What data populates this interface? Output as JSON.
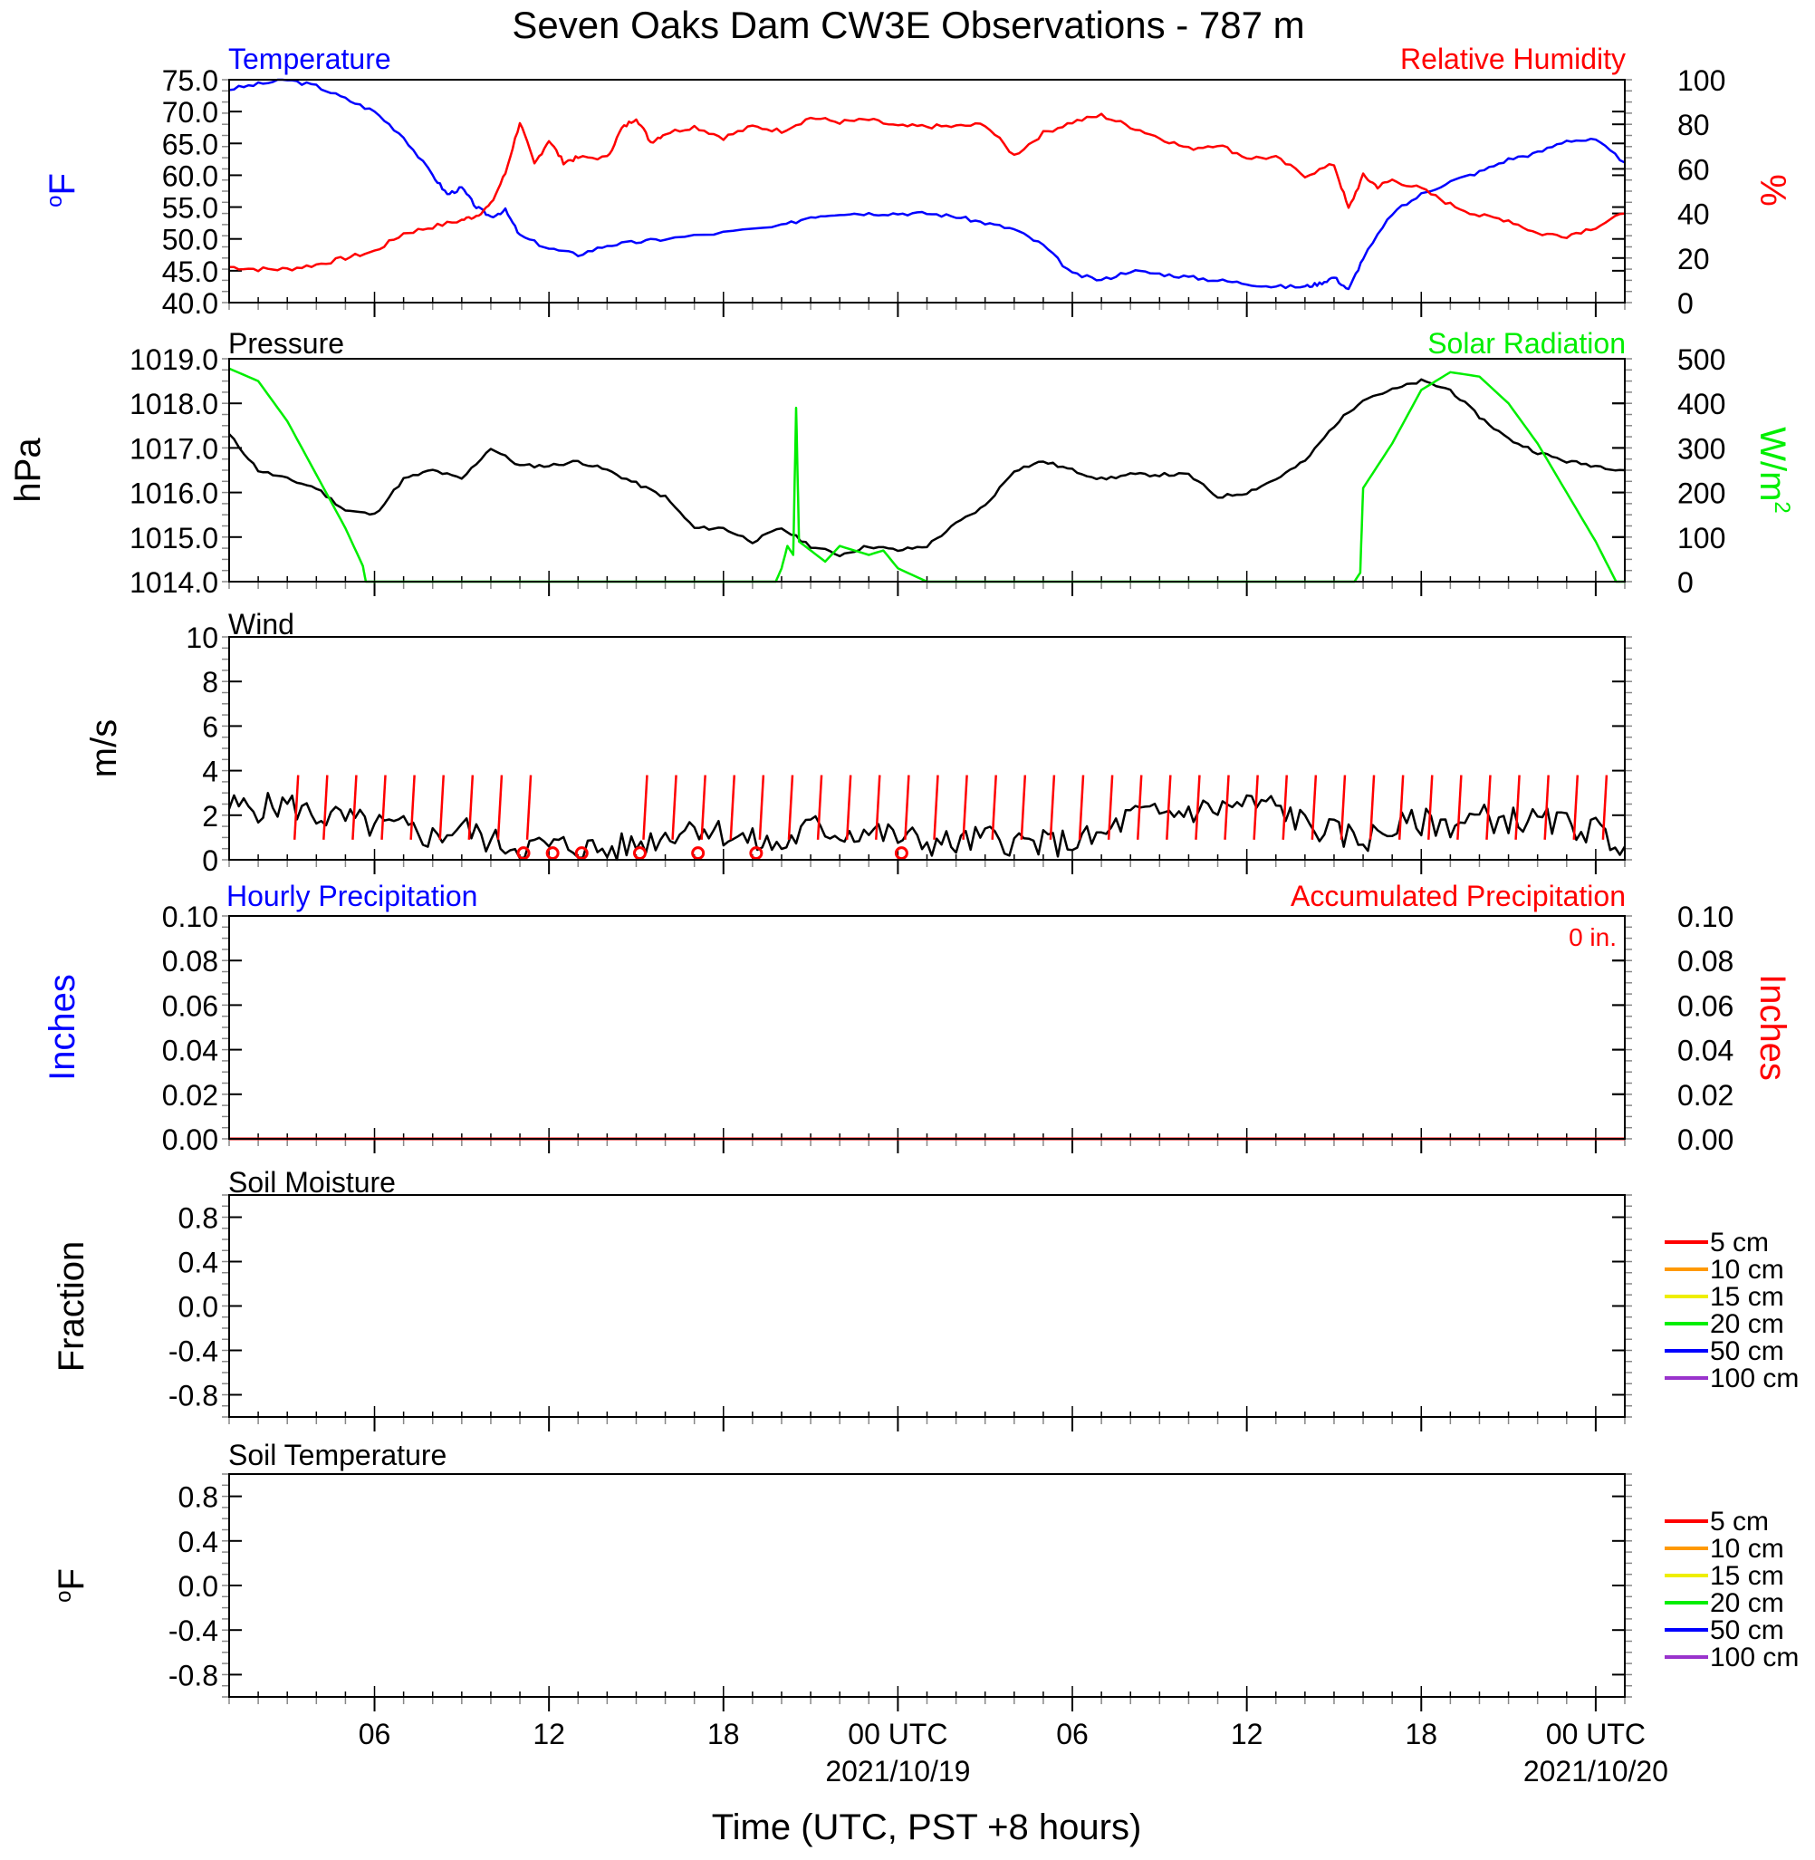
{
  "title": "Seven Oaks Dam CW3E Observations - 787 m",
  "x_axis": {
    "label": "Time (UTC, PST +8 hours)",
    "range_hours": [
      0,
      48
    ],
    "ticks": [
      {
        "hour": 5,
        "label": "06",
        "date": ""
      },
      {
        "hour": 11,
        "label": "12",
        "date": ""
      },
      {
        "hour": 17,
        "label": "18",
        "date": ""
      },
      {
        "hour": 23,
        "label": "00 UTC",
        "date": "2021/10/19"
      },
      {
        "hour": 29,
        "label": "06",
        "date": ""
      },
      {
        "hour": 35,
        "label": "12",
        "date": ""
      },
      {
        "hour": 41,
        "label": "18",
        "date": ""
      },
      {
        "hour": 47,
        "label": "00 UTC",
        "date": "2021/10/20"
      }
    ]
  },
  "colors": {
    "temperature": "#0000ff",
    "humidity": "#ff0000",
    "pressure": "#000000",
    "solar": "#00ee00",
    "wind": "#000000",
    "barb": "#ff0000",
    "hourly_precip": "#0000ff",
    "accum_precip": "#ff0000"
  },
  "depth_legend": [
    {
      "label": "5 cm",
      "color": "#ff0000"
    },
    {
      "label": "10 cm",
      "color": "#ff9900"
    },
    {
      "label": "15 cm",
      "color": "#eeee00"
    },
    {
      "label": "20 cm",
      "color": "#00ee00"
    },
    {
      "label": "50 cm",
      "color": "#0000ff"
    },
    {
      "label": "100 cm",
      "color": "#9933cc"
    }
  ],
  "panels": {
    "temp_rh": {
      "left_title": "Temperature",
      "right_title": "Relative Humidity",
      "left_ylabel": "oF",
      "right_ylabel": "%",
      "left_ticks": [
        "40.0",
        "45.0",
        "50.0",
        "55.0",
        "60.0",
        "65.0",
        "70.0",
        "75.0"
      ],
      "right_ticks": [
        "0",
        "20",
        "40",
        "60",
        "80",
        "100"
      ]
    },
    "pressure_solar": {
      "left_title": "Pressure",
      "right_title": "Solar Radiation",
      "left_ylabel": "hPa",
      "right_ylabel": "W/m2",
      "left_ticks": [
        "1014.0",
        "1015.0",
        "1016.0",
        "1017.0",
        "1018.0",
        "1019.0"
      ],
      "right_ticks": [
        "0",
        "100",
        "200",
        "300",
        "400",
        "500"
      ]
    },
    "wind": {
      "left_title": "Wind",
      "left_ylabel": "m/s",
      "left_ticks": [
        "0",
        "2",
        "4",
        "6",
        "8",
        "10"
      ]
    },
    "precip": {
      "left_title": "Hourly Precipitation",
      "right_title": "Accumulated Precipitation",
      "left_ylabel": "Inches",
      "right_ylabel": "Inches",
      "accum_total": "0 in.",
      "left_ticks": [
        "0.00",
        "0.02",
        "0.04",
        "0.06",
        "0.08",
        "0.10"
      ],
      "right_ticks": [
        "0.00",
        "0.02",
        "0.04",
        "0.06",
        "0.08",
        "0.10"
      ]
    },
    "soil_moisture": {
      "left_title": "Soil Moisture",
      "left_ylabel": "Fraction",
      "left_ticks": [
        "-0.8",
        "-0.4",
        "0.0",
        "0.4",
        "0.8"
      ]
    },
    "soil_temp": {
      "left_title": "Soil Temperature",
      "left_ylabel": "oF",
      "left_ticks": [
        "-0.8",
        "-0.4",
        "0.0",
        "0.4",
        "0.8"
      ]
    }
  },
  "chart_data": [
    {
      "type": "line",
      "title": "Temperature",
      "ylabel": "oF",
      "ylim": [
        40,
        75
      ],
      "x_unit": "hours",
      "series": [
        {
          "name": "Temperature",
          "x": [
            0,
            1,
            2,
            3,
            4,
            5,
            6,
            7,
            7.5,
            8,
            8.5,
            9,
            9.5,
            10,
            11,
            12,
            13,
            14,
            15,
            17,
            19,
            20,
            21,
            22,
            23,
            24,
            25,
            26,
            27,
            28,
            29,
            30,
            31,
            32,
            33,
            34,
            35,
            36,
            37,
            37.5,
            38,
            38.5,
            39,
            40,
            41,
            42,
            43,
            44,
            45,
            46,
            47,
            48
          ],
          "y": [
            73.5,
            74.3,
            75,
            74,
            72,
            70,
            66,
            60,
            57,
            58,
            55,
            53.5,
            54.5,
            50.5,
            48.5,
            47.5,
            49,
            49.5,
            50,
            51,
            52,
            53.5,
            54,
            54,
            54,
            54,
            53.5,
            52.5,
            51.5,
            49,
            44.5,
            43.5,
            45,
            44.5,
            44,
            43.5,
            43,
            42.5,
            42.5,
            43,
            44,
            42,
            47,
            54,
            57,
            59,
            60.5,
            62.5,
            63.5,
            65.5,
            65.5,
            62
          ]
        }
      ]
    },
    {
      "type": "line",
      "title": "Relative Humidity",
      "ylabel": "%",
      "ylim": [
        0,
        100
      ],
      "x_unit": "hours",
      "series": [
        {
          "name": "Relative Humidity",
          "x": [
            0,
            1,
            2,
            3,
            4,
            5,
            6,
            7,
            8,
            8.5,
            9,
            9.5,
            10,
            10.5,
            11,
            11.5,
            12,
            13,
            13.5,
            14,
            14.5,
            15,
            16,
            17,
            18,
            19,
            20,
            21,
            22,
            23,
            24,
            25,
            26,
            27,
            28,
            29,
            30,
            31,
            32,
            33,
            34,
            35,
            36,
            37,
            38,
            38.5,
            39,
            39.5,
            40,
            41,
            42,
            43,
            44,
            45,
            46,
            47,
            48
          ],
          "y": [
            16,
            15,
            15,
            17,
            20,
            23,
            31,
            34,
            37,
            39,
            44,
            58,
            81,
            62,
            73,
            63,
            65,
            65,
            78,
            83,
            72,
            76,
            79,
            74,
            79,
            77,
            83,
            81,
            82,
            79,
            79,
            79,
            80,
            66,
            76,
            81,
            84,
            79,
            74,
            69,
            71,
            65,
            65,
            57,
            62,
            42,
            57,
            52,
            55,
            51,
            44,
            39,
            37,
            31,
            30,
            34,
            40
          ]
        }
      ]
    },
    {
      "type": "line",
      "title": "Pressure",
      "ylabel": "hPa",
      "ylim": [
        1014,
        1019
      ],
      "x_unit": "hours",
      "series": [
        {
          "name": "Pressure",
          "x": [
            0,
            1,
            2,
            3,
            4,
            5,
            6,
            7,
            8,
            9,
            10,
            11,
            12,
            13,
            14,
            15,
            16,
            17,
            18,
            19,
            20,
            21,
            22,
            23,
            24,
            25,
            26,
            27,
            28,
            29,
            30,
            31,
            32,
            33,
            34,
            35,
            36,
            37,
            38,
            39,
            40,
            41,
            42,
            43,
            44,
            45,
            46,
            47,
            48
          ],
          "y": [
            1017.3,
            1016.5,
            1016.3,
            1016.1,
            1015.6,
            1015.5,
            1016.3,
            1016.5,
            1016.3,
            1017.0,
            1016.6,
            1016.6,
            1016.7,
            1016.5,
            1016.2,
            1015.9,
            1015.2,
            1015.2,
            1014.9,
            1015.2,
            1014.8,
            1014.6,
            1014.8,
            1014.7,
            1014.8,
            1015.3,
            1015.7,
            1016.5,
            1016.7,
            1016.5,
            1016.3,
            1016.4,
            1016.4,
            1016.4,
            1015.9,
            1016.0,
            1016.3,
            1016.7,
            1017.5,
            1018.1,
            1018.3,
            1018.5,
            1018.3,
            1017.7,
            1017.2,
            1016.9,
            1016.7,
            1016.6,
            1016.5
          ]
        }
      ]
    },
    {
      "type": "line",
      "title": "Solar Radiation",
      "ylabel": "W/m2",
      "ylim": [
        0,
        500
      ],
      "x_unit": "hours",
      "series": [
        {
          "name": "Solar Radiation",
          "x": [
            0,
            1,
            2,
            3,
            4,
            4.6,
            4.7,
            18.8,
            19,
            19.2,
            19.4,
            19.5,
            19.6,
            19.8,
            20.5,
            21,
            22,
            22.5,
            23,
            24,
            38.7,
            38.9,
            39,
            40,
            41,
            42,
            43,
            44,
            45,
            46,
            47,
            47.7,
            47.8,
            48
          ],
          "y": [
            478,
            450,
            360,
            240,
            120,
            35,
            0,
            0,
            30,
            80,
            60,
            390,
            90,
            80,
            45,
            80,
            60,
            70,
            30,
            0,
            0,
            20,
            210,
            310,
            430,
            470,
            460,
            400,
            310,
            200,
            90,
            0,
            0,
            0
          ]
        }
      ]
    },
    {
      "type": "line",
      "title": "Wind",
      "ylabel": "m/s",
      "ylim": [
        0,
        10
      ],
      "x_unit": "hours",
      "series": [
        {
          "name": "Wind",
          "x": [
            0,
            1,
            2,
            3,
            4,
            5,
            6,
            7,
            8,
            9,
            10,
            11,
            12,
            13,
            14,
            15,
            16,
            17,
            18,
            19,
            20,
            21,
            22,
            23,
            24,
            25,
            26,
            27,
            28,
            29,
            30,
            31,
            32,
            33,
            34,
            35,
            36,
            37,
            38,
            39,
            40,
            41,
            42,
            43,
            44,
            45,
            46,
            47,
            48
          ],
          "y": [
            2.4,
            2.3,
            2.5,
            2.0,
            1.8,
            1.5,
            1.4,
            1.0,
            1.5,
            0.8,
            0.6,
            0.6,
            0.6,
            0.4,
            0.7,
            1.1,
            1.6,
            1.2,
            0.8,
            0.6,
            1.5,
            1.2,
            1.3,
            1.0,
            0.8,
            0.7,
            1.0,
            0.8,
            0.7,
            0.8,
            1.0,
            2.0,
            2.0,
            2.2,
            2.3,
            2.5,
            2.4,
            1.6,
            1.2,
            0.9,
            1.4,
            1.7,
            1.6,
            1.9,
            1.8,
            1.7,
            1.6,
            1.3,
            0.6
          ]
        }
      ],
      "barbs_hours": [
        2,
        3,
        4,
        5,
        6,
        7,
        8,
        9,
        10,
        14,
        15,
        16,
        17,
        18,
        19,
        20,
        21,
        22,
        23,
        24,
        25,
        26,
        27,
        28,
        29,
        30,
        31,
        32,
        33,
        34,
        35,
        36,
        37,
        38,
        39,
        40,
        41,
        42,
        43,
        44,
        45,
        46,
        47
      ],
      "calm_hours": [
        10,
        11,
        12,
        14,
        16,
        18,
        23
      ]
    },
    {
      "type": "line",
      "title": "Hourly Precipitation",
      "ylabel": "Inches",
      "ylim": [
        0,
        0.1
      ],
      "x_unit": "hours",
      "series": [
        {
          "name": "Hourly Precipitation",
          "x": [
            0,
            48
          ],
          "y": [
            0,
            0
          ]
        },
        {
          "name": "Accumulated Precipitation",
          "x": [
            0,
            48
          ],
          "y": [
            0,
            0
          ]
        }
      ]
    },
    {
      "type": "line",
      "title": "Soil Moisture",
      "ylabel": "Fraction",
      "ylim": [
        -1,
        1
      ],
      "series": []
    },
    {
      "type": "line",
      "title": "Soil Temperature",
      "ylabel": "oF",
      "ylim": [
        -1,
        1
      ],
      "series": []
    }
  ]
}
